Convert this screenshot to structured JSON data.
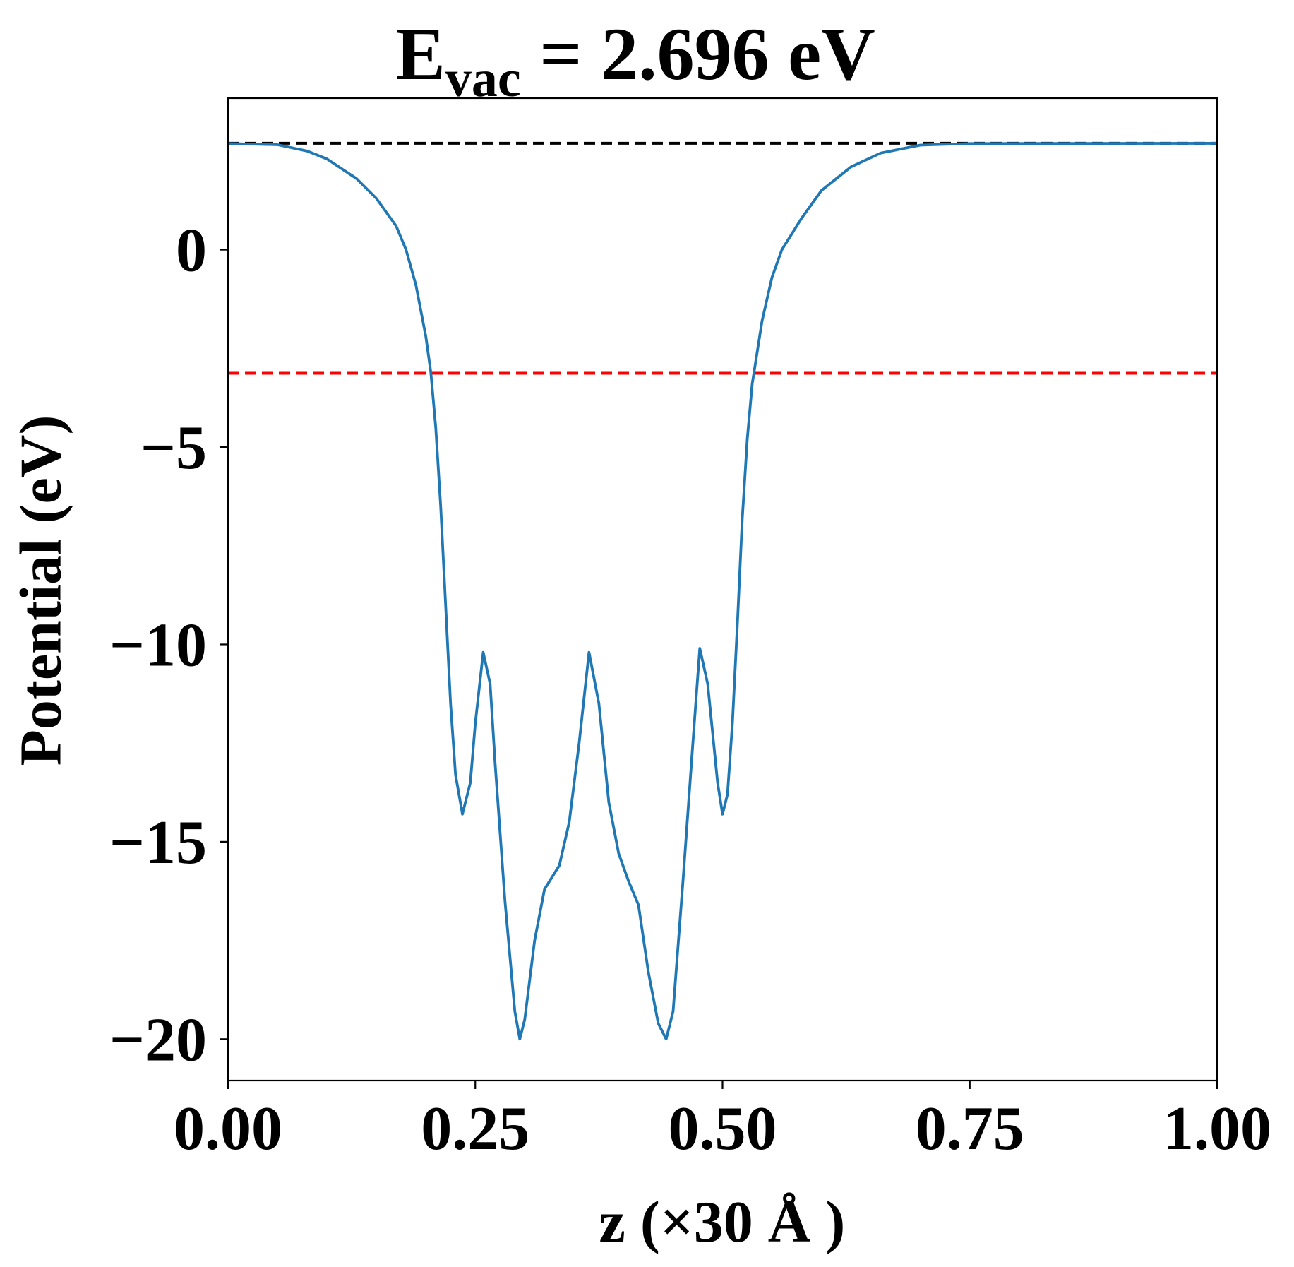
{
  "chart_data": {
    "type": "line",
    "title": {
      "main": "E",
      "sub": "vac",
      "rest": " = 2.696 eV"
    },
    "xlabel": "z (×30 Å )",
    "ylabel": "Potential (eV)",
    "xlim": [
      0,
      1
    ],
    "ylim": [
      -21.05,
      3.84
    ],
    "xticks": [
      {
        "value": 0,
        "label": "0.00"
      },
      {
        "value": 0.25,
        "label": "0.25"
      },
      {
        "value": 0.5,
        "label": "0.50"
      },
      {
        "value": 0.75,
        "label": "0.75"
      },
      {
        "value": 1,
        "label": "1.00"
      }
    ],
    "yticks": [
      {
        "value": -20,
        "label": "−20"
      },
      {
        "value": -15,
        "label": "−15"
      },
      {
        "value": -10,
        "label": "−10"
      },
      {
        "value": -5,
        "label": "−5"
      },
      0
    ],
    "hlines": [
      {
        "value": 2.696,
        "color": "#000000"
      },
      {
        "value": -3.13,
        "color": "#ff0000"
      }
    ],
    "series": [
      {
        "color": "#1f77b4",
        "x": [
          0,
          0.05,
          0.08,
          0.1,
          0.13,
          0.15,
          0.17,
          0.18,
          0.19,
          0.2,
          0.205,
          0.21,
          0.215,
          0.22,
          0.225,
          0.23,
          0.237,
          0.245,
          0.25,
          0.258,
          0.265,
          0.27,
          0.28,
          0.29,
          0.295,
          0.3,
          0.31,
          0.32,
          0.335,
          0.345,
          0.355,
          0.365,
          0.375,
          0.385,
          0.395,
          0.405,
          0.415,
          0.425,
          0.435,
          0.443,
          0.45,
          0.46,
          0.47,
          0.477,
          0.485,
          0.495,
          0.5,
          0.505,
          0.51,
          0.515,
          0.52,
          0.525,
          0.53,
          0.54,
          0.55,
          0.56,
          0.58,
          0.6,
          0.63,
          0.66,
          0.7,
          0.75,
          1.0
        ],
        "values": [
          2.69,
          2.66,
          2.5,
          2.3,
          1.8,
          1.3,
          0.6,
          0.0,
          -0.9,
          -2.2,
          -3.1,
          -4.5,
          -6.5,
          -9,
          -11.5,
          -13.3,
          -14.3,
          -13.5,
          -12,
          -10.2,
          -11,
          -13,
          -16.5,
          -19.3,
          -20,
          -19.5,
          -17.5,
          -16.2,
          -15.6,
          -14.5,
          -12.5,
          -10.2,
          -11.5,
          -14,
          -15.3,
          -16.0,
          -16.6,
          -18.3,
          -19.6,
          -20,
          -19.3,
          -16,
          -12.5,
          -10.1,
          -11,
          -13.5,
          -14.3,
          -13.8,
          -12,
          -9.5,
          -6.8,
          -4.8,
          -3.4,
          -1.8,
          -0.7,
          0.0,
          0.8,
          1.5,
          2.1,
          2.45,
          2.65,
          2.69,
          2.696
        ]
      }
    ]
  }
}
